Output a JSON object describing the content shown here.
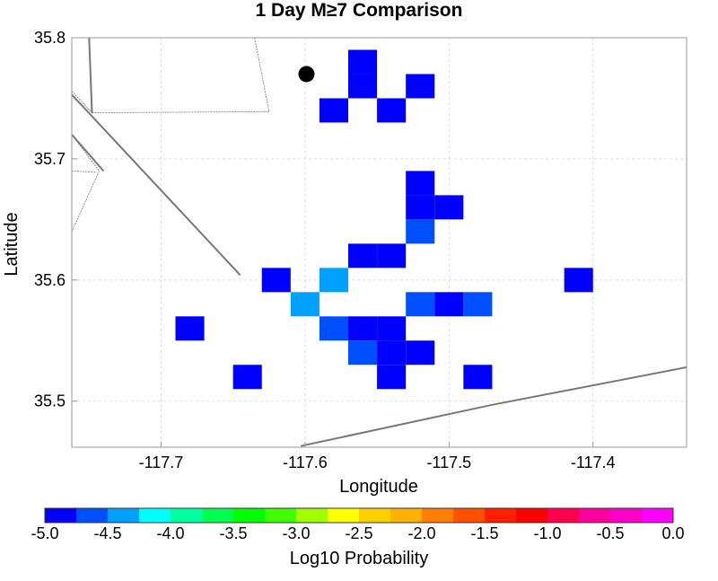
{
  "chart_data": {
    "type": "heatmap",
    "title": "1 Day M≥7 Comparison",
    "xlabel": "Longitude",
    "ylabel": "Latitude",
    "xlim": [
      -117.762,
      -117.335
    ],
    "ylim": [
      35.462,
      35.8
    ],
    "xticks": [
      -117.7,
      -117.6,
      -117.5,
      -117.4
    ],
    "yticks": [
      35.5,
      35.6,
      35.7,
      35.8
    ],
    "cell_size_deg": 0.02,
    "grid": true,
    "cells": [
      {
        "lon": -117.56,
        "lat": 35.78,
        "value": -4.9
      },
      {
        "lon": -117.56,
        "lat": 35.76,
        "value": -4.9
      },
      {
        "lon": -117.52,
        "lat": 35.76,
        "value": -4.9
      },
      {
        "lon": -117.58,
        "lat": 35.74,
        "value": -4.9
      },
      {
        "lon": -117.54,
        "lat": 35.74,
        "value": -4.9
      },
      {
        "lon": -117.52,
        "lat": 35.68,
        "value": -4.9
      },
      {
        "lon": -117.52,
        "lat": 35.66,
        "value": -4.9
      },
      {
        "lon": -117.5,
        "lat": 35.66,
        "value": -4.9
      },
      {
        "lon": -117.52,
        "lat": 35.64,
        "value": -4.6
      },
      {
        "lon": -117.56,
        "lat": 35.62,
        "value": -4.9
      },
      {
        "lon": -117.54,
        "lat": 35.62,
        "value": -4.9
      },
      {
        "lon": -117.62,
        "lat": 35.6,
        "value": -4.9
      },
      {
        "lon": -117.58,
        "lat": 35.6,
        "value": -4.3
      },
      {
        "lon": -117.41,
        "lat": 35.6,
        "value": -4.9
      },
      {
        "lon": -117.6,
        "lat": 35.58,
        "value": -4.3
      },
      {
        "lon": -117.52,
        "lat": 35.58,
        "value": -4.6
      },
      {
        "lon": -117.5,
        "lat": 35.58,
        "value": -4.9
      },
      {
        "lon": -117.48,
        "lat": 35.58,
        "value": -4.6
      },
      {
        "lon": -117.68,
        "lat": 35.56,
        "value": -4.9
      },
      {
        "lon": -117.58,
        "lat": 35.56,
        "value": -4.6
      },
      {
        "lon": -117.56,
        "lat": 35.56,
        "value": -4.9
      },
      {
        "lon": -117.54,
        "lat": 35.56,
        "value": -4.9
      },
      {
        "lon": -117.56,
        "lat": 35.54,
        "value": -4.6
      },
      {
        "lon": -117.54,
        "lat": 35.54,
        "value": -4.9
      },
      {
        "lon": -117.52,
        "lat": 35.54,
        "value": -4.9
      },
      {
        "lon": -117.64,
        "lat": 35.52,
        "value": -4.9
      },
      {
        "lon": -117.54,
        "lat": 35.52,
        "value": -4.9
      },
      {
        "lon": -117.48,
        "lat": 35.52,
        "value": -4.9
      }
    ],
    "epicenter": {
      "lon": -117.599,
      "lat": 35.77
    },
    "faults": [
      [
        [
          -117.762,
          35.753
        ],
        [
          -117.645,
          35.604
        ]
      ],
      [
        [
          -117.762,
          35.756
        ],
        [
          -117.748,
          35.738
        ],
        [
          -117.625,
          35.739
        ],
        [
          -117.635,
          35.8
        ]
      ],
      [
        [
          -117.762,
          35.72
        ],
        [
          -117.743,
          35.69
        ],
        [
          -117.762,
          35.64
        ]
      ],
      [
        [
          -117.762,
          35.69
        ],
        [
          -117.745,
          35.689
        ]
      ],
      [
        [
          -117.762,
          35.72
        ],
        [
          -117.74,
          35.69
        ]
      ],
      [
        [
          -117.75,
          35.8
        ],
        [
          -117.748,
          35.738
        ]
      ],
      [
        [
          -117.603,
          35.463
        ],
        [
          -117.47,
          35.497
        ],
        [
          -117.335,
          35.528
        ]
      ]
    ],
    "colorbar": {
      "label": "Log10 Probability",
      "range": [
        -5.0,
        0.0
      ],
      "ticks": [
        "-5.0",
        "-4.5",
        "-4.0",
        "-3.5",
        "-3.0",
        "-2.5",
        "-2.0",
        "-1.5",
        "-1.0",
        "-0.5",
        "0.0"
      ],
      "colors": [
        "#0000ff",
        "#0050ff",
        "#00a0ff",
        "#00ffff",
        "#00ffa0",
        "#00ff50",
        "#00ff00",
        "#40ff00",
        "#a0ff00",
        "#ffff00",
        "#ffd000",
        "#ffb000",
        "#ff8000",
        "#ff5000",
        "#ff2000",
        "#ff0000",
        "#ff0050",
        "#ff00a0",
        "#ff00c8",
        "#ff00ff"
      ]
    }
  }
}
